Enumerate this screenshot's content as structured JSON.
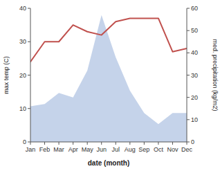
{
  "chart_data": {
    "type": "line",
    "categories": [
      "Jan",
      "Feb",
      "Mar",
      "Apr",
      "May",
      "Jun",
      "Jul",
      "Aug",
      "Sep",
      "Oct",
      "Nov",
      "Dec"
    ],
    "series": [
      {
        "type": "area",
        "color": "#c5d3ea",
        "axis": "y2",
        "values": [
          16,
          17,
          22,
          20,
          32,
          57,
          38,
          23,
          13,
          8,
          13,
          13
        ]
      },
      {
        "type": "line",
        "color": "#c0504d",
        "values": [
          24,
          30,
          30,
          35,
          33,
          32,
          36,
          37,
          37,
          37,
          27,
          28
        ]
      }
    ],
    "xlabel": "date (month)",
    "ylabel": "max temp (C)",
    "y2label": "med. precipitation (kg/m2)",
    "ylim": [
      0,
      40
    ],
    "yticks": [
      0,
      10,
      20,
      30,
      40
    ],
    "y2lim": [
      0,
      60
    ],
    "y2ticks": [
      0,
      10,
      20,
      30,
      40,
      50,
      60
    ]
  }
}
